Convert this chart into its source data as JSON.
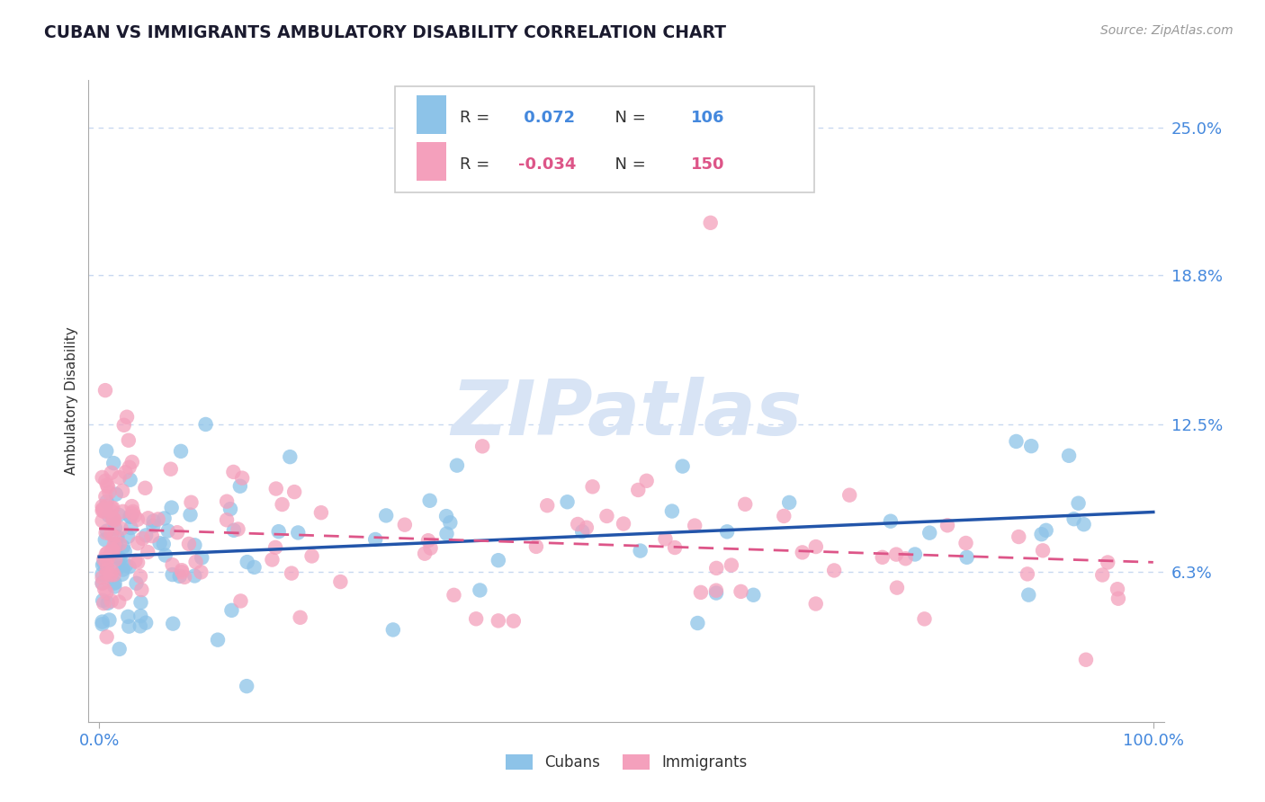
{
  "title": "CUBAN VS IMMIGRANTS AMBULATORY DISABILITY CORRELATION CHART",
  "source_text": "Source: ZipAtlas.com",
  "ylabel": "Ambulatory Disability",
  "xlim": [
    -1.0,
    101.0
  ],
  "ylim": [
    0.0,
    27.0
  ],
  "yticks": [
    6.3,
    12.5,
    18.8,
    25.0
  ],
  "ytick_labels": [
    "6.3%",
    "12.5%",
    "18.8%",
    "25.0%"
  ],
  "xtick_labels": [
    "0.0%",
    "100.0%"
  ],
  "cubans_R": 0.072,
  "cubans_N": 106,
  "immigrants_R": -0.034,
  "immigrants_N": 150,
  "blue_color": "#8DC3E8",
  "pink_color": "#F4A0BC",
  "blue_line_color": "#2255AA",
  "pink_line_color": "#DD5588",
  "watermark_color": "#D8E4F5",
  "background_color": "#FFFFFF",
  "title_color": "#1a1a2e",
  "axis_label_color": "#333333",
  "tick_label_color": "#4488DD",
  "grid_color": "#C8D8F0",
  "legend_r_color": "#4488DD",
  "legend_r_pink_color": "#DD5588"
}
